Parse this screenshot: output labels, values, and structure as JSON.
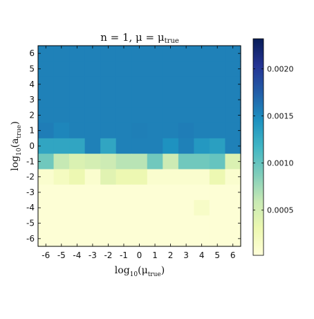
{
  "chart_data": {
    "type": "heatmap",
    "title": "n = 1,  μ = μ_true",
    "title_parts": {
      "main": "n = 1,  μ = μ",
      "sub": "true"
    },
    "xlabel_parts": {
      "pre": "log",
      "base": "10",
      "mid": "(μ",
      "sub": "true",
      "post": ")"
    },
    "ylabel_parts": {
      "pre": "log",
      "base": "10",
      "mid": "(a",
      "sub": "true",
      "post": ")"
    },
    "x_ticks": [
      "-6",
      "-5",
      "-4",
      "-3",
      "-2",
      "-1",
      "0",
      "1",
      "2",
      "3",
      "4",
      "5",
      "6"
    ],
    "y_ticks": [
      "6",
      "5",
      "4",
      "3",
      "2",
      "1",
      "0",
      "-1",
      "-2",
      "-3",
      "-4",
      "-5",
      "-6"
    ],
    "x_values": [
      -6,
      -5,
      -4,
      -3,
      -2,
      -1,
      0,
      1,
      2,
      3,
      4,
      5,
      6
    ],
    "y_values": [
      6,
      5,
      4,
      3,
      2,
      1,
      0,
      -1,
      -2,
      -3,
      -4,
      -5,
      -6
    ],
    "colormap": "YlGnBu",
    "colorbar": {
      "range": [
        2e-05,
        0.00232
      ],
      "ticks": [
        0.0005,
        0.001,
        0.0015,
        0.002
      ],
      "tick_labels": [
        "0.0005",
        "0.0010",
        "0.0015",
        "0.0020"
      ]
    },
    "z": [
      [
        0.00155,
        0.00155,
        0.00155,
        0.00155,
        0.00155,
        0.00155,
        0.00155,
        0.00155,
        0.00155,
        0.00155,
        0.00155,
        0.00155,
        0.00155
      ],
      [
        0.00155,
        0.00155,
        0.00155,
        0.00155,
        0.00155,
        0.00155,
        0.00155,
        0.00155,
        0.00155,
        0.00155,
        0.00155,
        0.00155,
        0.00155
      ],
      [
        0.00155,
        0.00155,
        0.00155,
        0.00155,
        0.00155,
        0.00155,
        0.00155,
        0.00155,
        0.00155,
        0.00155,
        0.00155,
        0.00155,
        0.00155
      ],
      [
        0.00155,
        0.00155,
        0.00155,
        0.00155,
        0.00155,
        0.00155,
        0.00155,
        0.00155,
        0.00155,
        0.00155,
        0.00155,
        0.00155,
        0.00155
      ],
      [
        0.00155,
        0.00155,
        0.00155,
        0.00155,
        0.00155,
        0.00155,
        0.00155,
        0.00155,
        0.00155,
        0.00155,
        0.00155,
        0.00155,
        0.00155
      ],
      [
        0.00157,
        0.00152,
        0.00155,
        0.00155,
        0.00155,
        0.00155,
        0.00156,
        0.00155,
        0.00155,
        0.00157,
        0.00155,
        0.00155,
        0.00155
      ],
      [
        0.0013,
        0.0013,
        0.0013,
        0.00155,
        0.0013,
        0.00155,
        0.00155,
        0.00155,
        0.00145,
        0.00155,
        0.0014,
        0.00135,
        0.00155
      ],
      [
        0.00095,
        0.0006,
        0.00045,
        0.0005,
        0.00055,
        0.00065,
        0.00065,
        0.00095,
        0.00055,
        0.00095,
        0.00095,
        0.001,
        0.00045
      ],
      [
        0.0001,
        0.0002,
        0.0003,
        0.0001,
        0.0004,
        0.0003,
        0.0003,
        0.0001,
        0.0001,
        0.0001,
        0.0001,
        0.0003,
        0.0001
      ],
      [
        5e-05,
        5e-05,
        5e-05,
        5e-05,
        5e-05,
        5e-05,
        5e-05,
        5e-05,
        5e-05,
        5e-05,
        5e-05,
        5e-05,
        5e-05
      ],
      [
        5e-05,
        5e-05,
        5e-05,
        5e-05,
        5e-05,
        5e-05,
        5e-05,
        5e-05,
        5e-05,
        5e-05,
        0.00015,
        5e-05,
        5e-05
      ],
      [
        5e-05,
        5e-05,
        5e-05,
        5e-05,
        5e-05,
        5e-05,
        5e-05,
        5e-05,
        5e-05,
        5e-05,
        5e-05,
        5e-05,
        5e-05
      ],
      [
        5e-05,
        5e-05,
        5e-05,
        5e-05,
        5e-05,
        5e-05,
        5e-05,
        5e-05,
        5e-05,
        5e-05,
        5e-05,
        5e-05,
        5e-05
      ]
    ]
  }
}
